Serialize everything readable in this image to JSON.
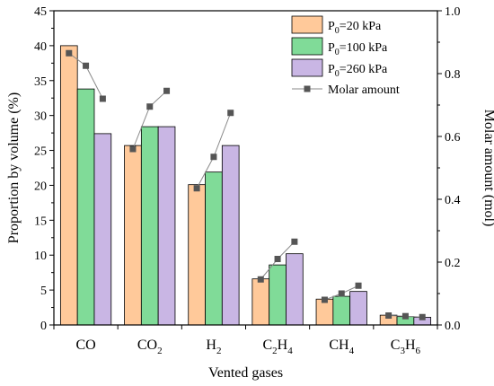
{
  "chart_data": {
    "type": "bar",
    "categories": [
      {
        "main": "CO",
        "sub": ""
      },
      {
        "main": "CO",
        "sub": "2"
      },
      {
        "main": "H",
        "sub": "2"
      },
      {
        "main": "C",
        "sub": "2",
        "main2": "H",
        "sub2": "4"
      },
      {
        "main": "CH",
        "sub": "4"
      },
      {
        "main": "C",
        "sub": "3",
        "main2": "H",
        "sub2": "6"
      }
    ],
    "series": [
      {
        "name": "P0=20 kPa",
        "name_main": "P",
        "name_sub": "0",
        "name_rest": "=20 kPa",
        "color": "#FFC99A",
        "values": [
          40.0,
          25.7,
          20.1,
          6.6,
          3.7,
          1.4
        ]
      },
      {
        "name": "P0=100 kPa",
        "name_main": "P",
        "name_sub": "0",
        "name_rest": "=100 kPa",
        "color": "#80DB98",
        "values": [
          33.8,
          28.4,
          21.9,
          8.6,
          4.1,
          1.2
        ]
      },
      {
        "name": "P0=260 kPa",
        "name_main": "P",
        "name_sub": "0",
        "name_rest": "=260 kPa",
        "color": "#C9B6E4",
        "values": [
          27.4,
          28.4,
          25.7,
          10.2,
          4.8,
          1.1
        ]
      }
    ],
    "molar_series": {
      "name": "Molar amount",
      "color": "#555555",
      "values": [
        [
          0.865,
          0.825,
          0.72
        ],
        [
          0.56,
          0.695,
          0.745
        ],
        [
          0.435,
          0.535,
          0.675
        ],
        [
          0.145,
          0.21,
          0.265
        ],
        [
          0.08,
          0.1,
          0.125
        ],
        [
          0.03,
          0.028,
          0.025
        ]
      ]
    },
    "xlabel": "Vented gases",
    "ylabel": "Proportion by volume (%)",
    "y2label": "Molar amount (mol)",
    "ylim": [
      0,
      45
    ],
    "y2lim": [
      0,
      1.0
    ],
    "yticks": [
      0,
      5,
      10,
      15,
      20,
      25,
      30,
      35,
      40,
      45
    ],
    "y2ticks": [
      "0.0",
      "0.2",
      "0.4",
      "0.6",
      "0.8",
      "1.0"
    ],
    "legend_position": "top-right"
  }
}
